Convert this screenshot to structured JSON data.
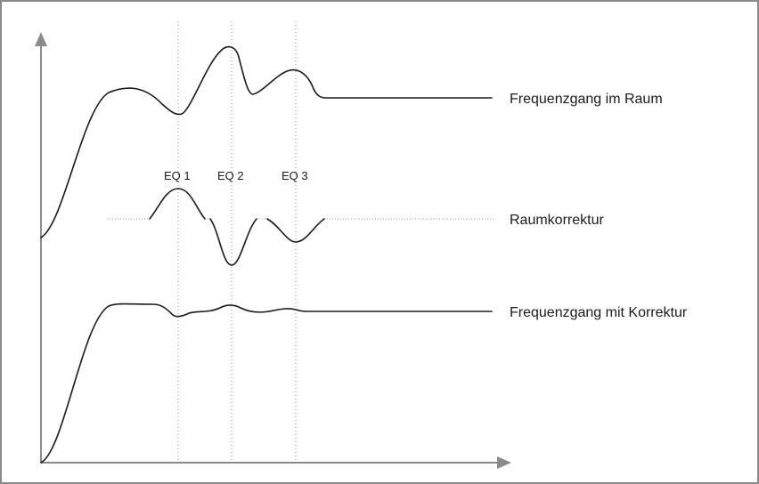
{
  "diagram": {
    "curve_labels": {
      "room": "Frequenzgang im Raum",
      "correction": "Raumkorrektur",
      "corrected": "Frequenzgang mit Korrektur"
    },
    "eq_labels": [
      "EQ 1",
      "EQ 2",
      "EQ 3"
    ],
    "colors": {
      "curve": "#1a1a1a",
      "axis": "#8a8a8a",
      "guide": "#9a9a9a"
    }
  }
}
